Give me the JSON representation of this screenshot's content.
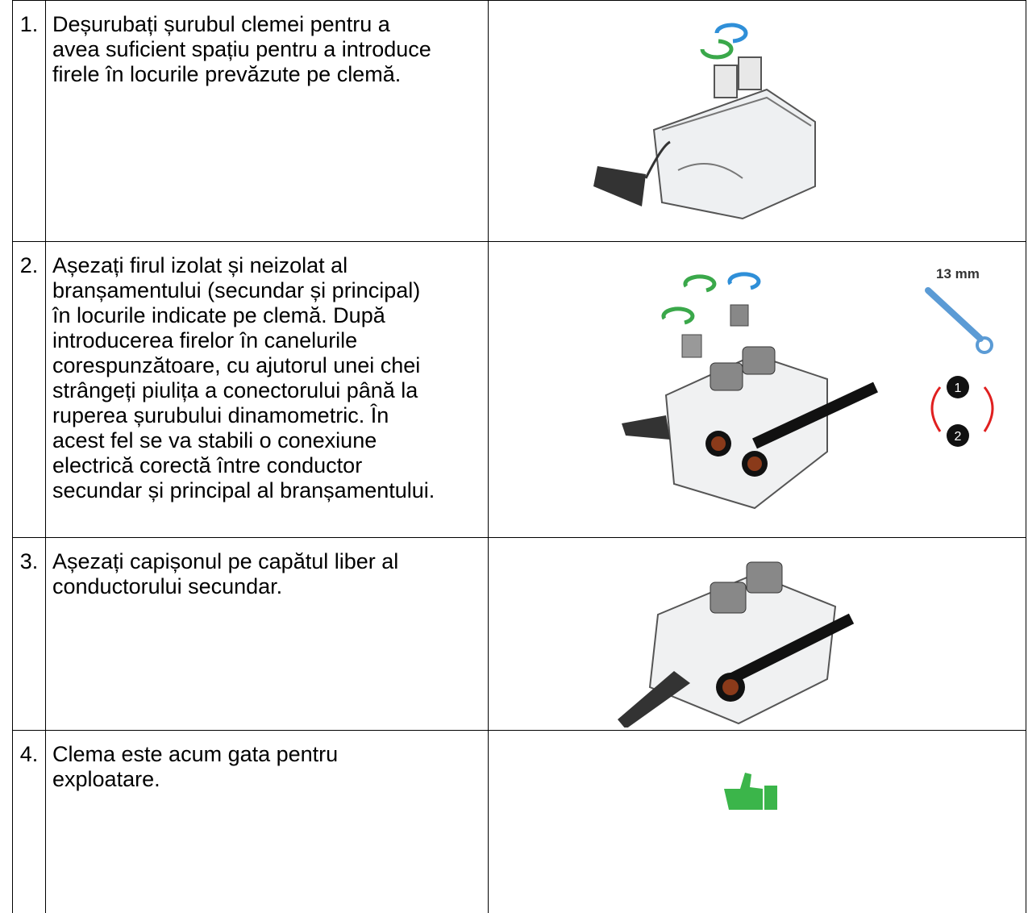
{
  "table": {
    "rows": [
      {
        "number": "1.",
        "lines": [
          "Deșurubați șurubul clemei pentru a",
          "avea suficient spațiu pentru a introduce",
          "firele în locurile prevăzute pe clemă."
        ]
      },
      {
        "number": "2.",
        "lines": [
          "Așezați firul izolat și neizolat al",
          "branșamentului (secundar și principal)",
          "în locurile indicate pe clemă. După",
          "introducerea firelor în canelurile",
          "corespunzătoare, cu ajutorul unei chei",
          "strângeți piulița a conectorului până la",
          "ruperea șurubului dinamometric. În",
          "acest fel se va stabili o conexiune",
          "electrică corectă între conductor",
          "secundar și principal al branșamentului."
        ],
        "image_labels": {
          "wrench": "13 mm",
          "step_one": "1",
          "step_two": "2"
        }
      },
      {
        "number": "3.",
        "lines": [
          "Așezați capișonul pe capătul liber al",
          "conductorului secundar."
        ]
      },
      {
        "number": "4.",
        "lines": [
          "Clema este acum gata pentru",
          "exploatare."
        ]
      }
    ]
  }
}
